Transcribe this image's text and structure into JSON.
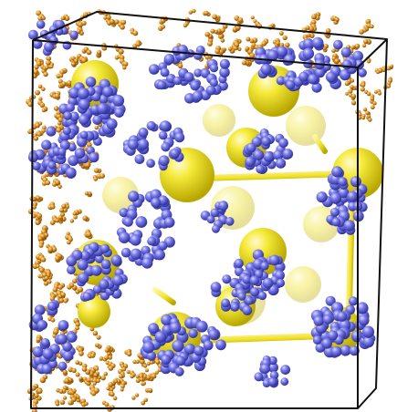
{
  "scene": {
    "subject": "molecular-simulation-render",
    "colors": {
      "background": "#ffffff",
      "cube_edge": "#111111",
      "large_sphere": "#f2e62a",
      "large_sphere_shadow": "#b8a600",
      "small_bead": "#6b6ee6",
      "small_bead_shadow": "#3a3db0",
      "chain_bead": "#d9901e",
      "chain_bead_shadow": "#8a5208",
      "lattice_rod": "#f0e020"
    }
  }
}
